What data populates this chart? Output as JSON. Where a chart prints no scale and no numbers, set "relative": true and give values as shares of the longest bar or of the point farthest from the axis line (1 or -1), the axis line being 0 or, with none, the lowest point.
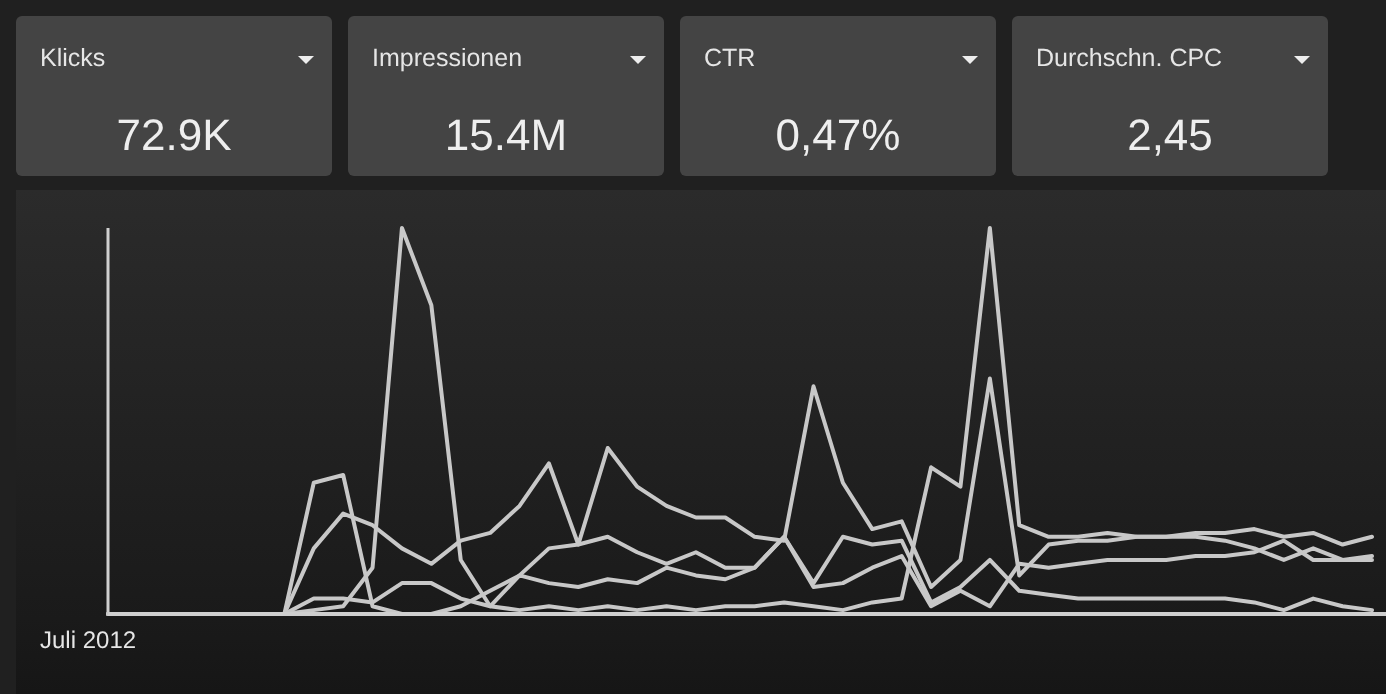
{
  "chart_data": [
    {
      "type": "other",
      "title": "Klicks",
      "annotations": [
        "72.9K"
      ]
    },
    {
      "type": "other",
      "title": "Impressionen",
      "annotations": [
        "15.4M"
      ]
    },
    {
      "type": "other",
      "title": "CTR",
      "annotations": [
        "0,47%"
      ]
    },
    {
      "type": "other",
      "title": "Durchschn. CPC",
      "annotations": [
        "2,45"
      ]
    },
    {
      "type": "line",
      "relative": true,
      "marker": "none",
      "line_style": "solid",
      "annotations": [
        "Juli 2012"
      ],
      "categories": [
        null,
        null,
        null,
        null,
        null,
        null,
        null,
        null,
        null,
        null,
        null,
        null,
        null,
        null,
        null,
        null,
        null,
        null,
        null,
        null,
        null,
        null,
        null,
        null,
        null,
        null,
        null,
        null,
        null,
        null,
        null,
        null,
        null,
        null,
        null,
        null,
        null,
        null,
        null,
        null,
        null,
        null,
        null,
        null
      ],
      "series": [
        {
          "color": "#c8c8c8",
          "values": [
            0,
            0,
            0,
            0,
            0,
            0,
            0,
            0.01,
            0.02,
            0.12,
            1,
            0.8,
            0.14,
            0.02,
            0.01,
            0.02,
            0.01,
            0.02,
            0.01,
            0.02,
            0.01,
            0.02,
            0.02,
            0.03,
            0.02,
            0.01,
            0.03,
            0.04,
            0.38,
            0.33,
            1,
            0.23,
            0.2,
            0.2,
            0.21,
            0.2,
            0.2,
            0.21,
            0.21,
            0.22,
            0.2,
            0.21,
            0.18,
            0.2
          ]
        },
        {
          "color": "#c8c8c8",
          "values": [
            0,
            0,
            0,
            0,
            0,
            0,
            0,
            0.34,
            0.36,
            0.02,
            0,
            0,
            0.02,
            0.06,
            0.1,
            0.08,
            0.07,
            0.09,
            0.08,
            0.12,
            0.1,
            0.09,
            0.12,
            0.2,
            0.07,
            0.08,
            0.12,
            0.15,
            0.02,
            0.06,
            0.02,
            0.13,
            0.12,
            0.13,
            0.14,
            0.14,
            0.14,
            0.15,
            0.15,
            0.16,
            0.19,
            0.14,
            0.14,
            0.15
          ]
        },
        {
          "color": "#c8c8c8",
          "values": [
            0,
            0,
            0,
            0,
            0,
            0,
            0,
            0.17,
            0.26,
            0.23,
            0.17,
            0.13,
            0.19,
            0.21,
            0.28,
            0.39,
            0.18,
            0.43,
            0.33,
            0.28,
            0.25,
            0.25,
            0.2,
            0.19,
            0.59,
            0.34,
            0.22,
            0.24,
            0.07,
            0.14,
            0.61,
            0.1,
            0.18,
            0.19,
            0.19,
            0.2,
            0.2,
            0.2,
            0.19,
            0.17,
            0.14,
            0.17,
            0.14,
            0.14
          ]
        },
        {
          "color": "#c8c8c8",
          "values": [
            0,
            0,
            0,
            0,
            0,
            0,
            0,
            0.04,
            0.04,
            0.03,
            0.08,
            0.08,
            0.04,
            0.02,
            0.1,
            0.17,
            0.18,
            0.2,
            0.16,
            0.13,
            0.16,
            0.12,
            0.12,
            0.2,
            0.08,
            0.2,
            0.18,
            0.19,
            0.03,
            0.07,
            0.14,
            0.06,
            0.05,
            0.04,
            0.04,
            0.04,
            0.04,
            0.04,
            0.04,
            0.03,
            0.01,
            0.04,
            0.02,
            0.01
          ]
        }
      ]
    }
  ]
}
